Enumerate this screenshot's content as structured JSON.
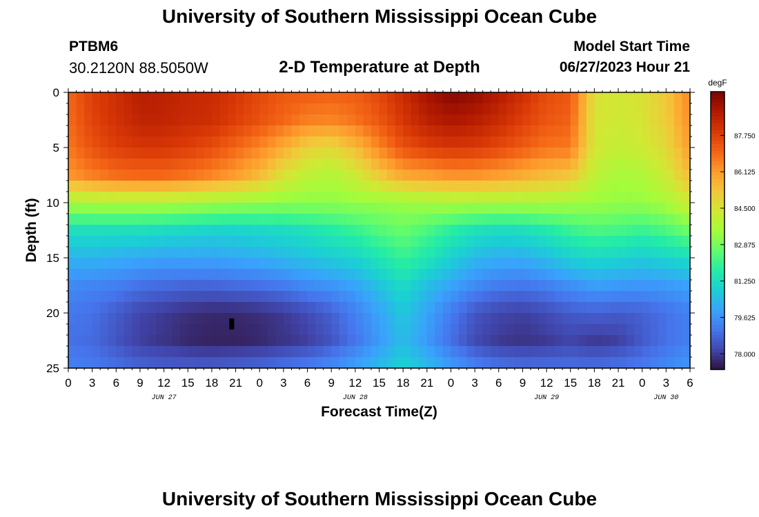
{
  "header": {
    "title": "University of Southern Mississippi Ocean Cube",
    "station_id": "PTBM6",
    "coordinates": "30.2120N  88.5050W",
    "plot_title": "2-D Temperature at Depth",
    "model_start_label": "Model Start Time",
    "model_start_value": "06/27/2023 Hour 21"
  },
  "footer": {
    "title": "University of Southern Mississippi Ocean Cube"
  },
  "colors": {
    "scale": [
      "#30123b",
      "#4145ab",
      "#4675ed",
      "#39a2fc",
      "#1bcfd4",
      "#24eca6",
      "#61fc6c",
      "#a4fc3b",
      "#d1e834",
      "#f3c63a",
      "#fe9b2d",
      "#f36315",
      "#d93806",
      "#b11901",
      "#7a0403"
    ],
    "marker": "#000000"
  },
  "chart_data": {
    "type": "heatmap",
    "title": "2-D Temperature at Depth",
    "xlabel": "Forecast Time(Z)",
    "ylabel": "Depth (ft)",
    "x_range_hours": [
      0,
      78
    ],
    "y_range_ft": [
      0,
      25
    ],
    "x_tick_labels": [
      "0",
      "3",
      "6",
      "9",
      "12",
      "15",
      "18",
      "21",
      "0",
      "3",
      "6",
      "9",
      "12",
      "15",
      "18",
      "21",
      "0",
      "3",
      "6",
      "9",
      "12",
      "15",
      "18",
      "21",
      "0",
      "3",
      "6"
    ],
    "y_tick_labels": [
      "0",
      "5",
      "10",
      "15",
      "20",
      "25"
    ],
    "y_tick_values": [
      0,
      5,
      10,
      15,
      20,
      25
    ],
    "date_labels": [
      {
        "label": "JUN 27",
        "hour": 12
      },
      {
        "label": "JUN 28",
        "hour": 36
      },
      {
        "label": "JUN 29",
        "hour": 60
      },
      {
        "label": "JUN 30",
        "hour": 75
      }
    ],
    "colorbar": {
      "unit": "degF",
      "min": 77.3,
      "max": 89.7,
      "labels": [
        "87.750",
        "86.125",
        "84.500",
        "82.875",
        "81.250",
        "79.625",
        "78.000"
      ],
      "values": [
        87.75,
        86.125,
        84.5,
        82.875,
        81.25,
        79.625,
        78.0
      ]
    },
    "grid_hours": [
      0,
      3,
      6,
      9,
      12,
      15,
      18,
      21,
      24,
      27,
      30,
      33,
      36,
      39,
      42,
      45,
      48,
      51,
      54,
      57,
      60,
      63,
      66,
      69,
      72,
      75,
      78
    ],
    "grid_depths_ft": [
      0,
      2.5,
      5,
      7.5,
      10,
      12.5,
      15,
      17.5,
      20,
      22.5,
      25
    ],
    "temperature_degF": [
      [
        87.0,
        87.8,
        88.2,
        88.7,
        88.6,
        88.4,
        88.3,
        88.0,
        87.6,
        87.3,
        87.2,
        87.1,
        87.2,
        87.6,
        88.3,
        89.0,
        89.5,
        89.3,
        88.8,
        88.2,
        87.5,
        87.3,
        84.6,
        84.4,
        84.6,
        85.2,
        86.5
      ],
      [
        86.9,
        87.7,
        88.1,
        88.5,
        88.5,
        88.3,
        88.2,
        87.8,
        87.4,
        87.0,
        86.6,
        86.5,
        86.8,
        87.3,
        88.0,
        88.6,
        88.9,
        88.7,
        88.3,
        87.8,
        87.3,
        87.1,
        84.5,
        84.3,
        84.5,
        85.1,
        86.4
      ],
      [
        86.7,
        87.4,
        87.8,
        88.0,
        88.0,
        87.8,
        87.5,
        87.0,
        86.5,
        85.8,
        85.0,
        84.8,
        85.5,
        86.5,
        87.4,
        87.8,
        88.0,
        87.9,
        87.6,
        87.2,
        86.8,
        86.7,
        84.4,
        84.1,
        84.3,
        84.8,
        86.1
      ],
      [
        86.2,
        86.6,
        86.9,
        87.0,
        87.0,
        86.8,
        86.5,
        86.1,
        85.5,
        84.6,
        84.0,
        83.8,
        84.3,
        85.2,
        85.9,
        86.1,
        86.3,
        86.3,
        86.1,
        85.8,
        85.5,
        85.3,
        84.0,
        83.6,
        83.7,
        84.3,
        85.5
      ],
      [
        83.6,
        83.7,
        83.7,
        83.7,
        83.7,
        83.6,
        83.5,
        83.4,
        83.3,
        83.2,
        83.2,
        83.2,
        83.3,
        83.3,
        83.4,
        83.5,
        83.6,
        83.6,
        83.6,
        83.6,
        83.6,
        83.5,
        83.4,
        83.3,
        83.3,
        83.6,
        84.3
      ],
      [
        81.3,
        81.3,
        81.3,
        81.3,
        81.2,
        81.1,
        81.0,
        81.0,
        81.1,
        81.2,
        81.4,
        81.7,
        82.0,
        82.4,
        82.7,
        82.3,
        81.8,
        81.4,
        81.2,
        81.3,
        81.6,
        82.0,
        82.3,
        82.2,
        82.0,
        82.3,
        82.8
      ],
      [
        80.3,
        80.3,
        80.2,
        80.1,
        80.0,
        80.0,
        80.0,
        80.1,
        80.2,
        80.4,
        80.6,
        80.8,
        81.0,
        81.5,
        82.0,
        81.5,
        80.9,
        80.4,
        80.2,
        80.2,
        80.5,
        80.9,
        81.1,
        81.0,
        80.8,
        81.0,
        81.2
      ],
      [
        79.5,
        79.4,
        79.3,
        79.0,
        78.9,
        78.8,
        78.8,
        78.9,
        79.0,
        79.2,
        79.5,
        79.7,
        80.0,
        80.6,
        81.2,
        80.5,
        80.0,
        79.5,
        79.2,
        79.1,
        79.3,
        79.6,
        79.9,
        79.8,
        79.7,
        79.8,
        80.0
      ],
      [
        79.1,
        79.0,
        78.6,
        78.2,
        78.0,
        77.8,
        77.7,
        77.7,
        77.8,
        78.0,
        78.3,
        78.7,
        79.3,
        80.0,
        80.7,
        80.0,
        79.2,
        78.5,
        78.2,
        78.1,
        78.3,
        78.6,
        78.7,
        78.6,
        78.7,
        79.0,
        79.3
      ],
      [
        79.0,
        78.9,
        78.5,
        78.1,
        77.9,
        77.7,
        77.6,
        77.6,
        77.7,
        77.9,
        78.1,
        78.5,
        79.1,
        79.8,
        80.5,
        79.8,
        79.0,
        78.3,
        78.0,
        77.9,
        78.0,
        78.2,
        78.0,
        78.1,
        78.6,
        79.0,
        79.3
      ],
      [
        79.3,
        79.2,
        79.0,
        78.8,
        78.7,
        78.7,
        78.7,
        78.8,
        78.9,
        79.1,
        79.3,
        79.6,
        80.0,
        80.5,
        81.0,
        80.5,
        79.9,
        79.4,
        79.1,
        79.0,
        79.0,
        79.0,
        79.0,
        79.1,
        79.2,
        79.5,
        79.8
      ]
    ]
  }
}
